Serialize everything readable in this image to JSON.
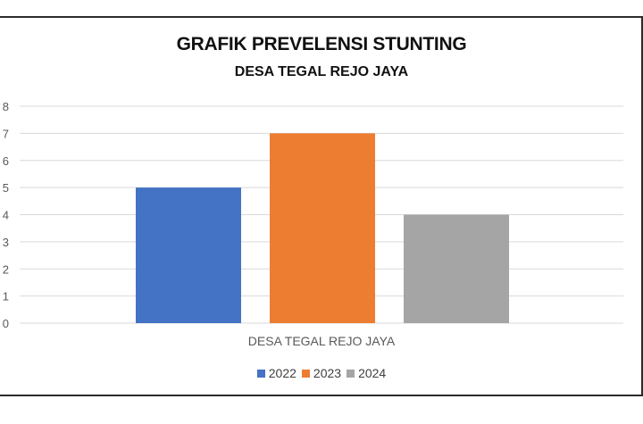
{
  "chart_data": {
    "type": "bar",
    "title": "GRAFIK PREVELENSI STUNTING",
    "subtitle": "DESA TEGAL REJO JAYA",
    "categories": [
      "DESA TEGAL REJO JAYA"
    ],
    "series": [
      {
        "name": "2022",
        "values": [
          5
        ],
        "color": "#4472C4"
      },
      {
        "name": "2023",
        "values": [
          7
        ],
        "color": "#ED7D31"
      },
      {
        "name": "2024",
        "values": [
          4
        ],
        "color": "#A5A5A5"
      }
    ],
    "ylim": [
      0,
      8
    ],
    "yticks": [
      "0",
      "1",
      "2",
      "3",
      "4",
      "5",
      "6",
      "7",
      "8"
    ],
    "grid": true,
    "legend": "bottom"
  }
}
